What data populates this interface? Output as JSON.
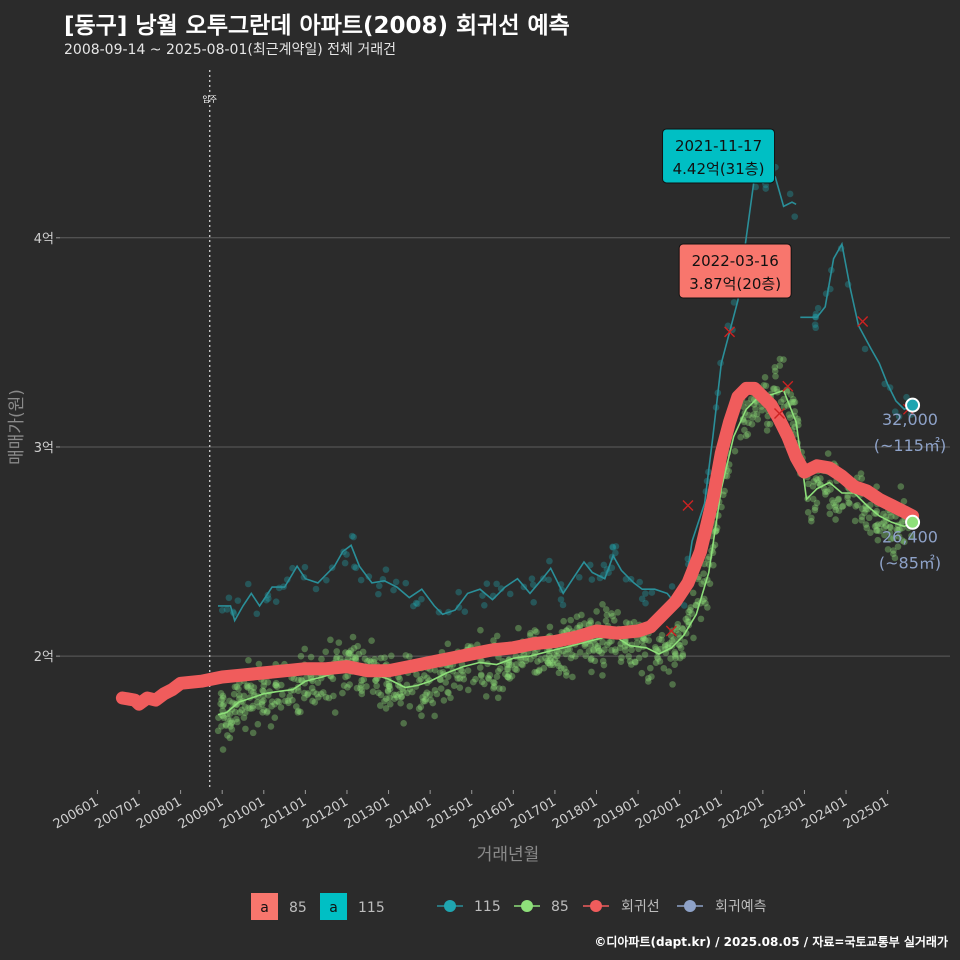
{
  "header": {
    "title": "[동구] 낭월 오투그란데 아파트(2008) 회귀선 예측",
    "subtitle": "2008-09-14 ~ 2025-08-01(최근계약일) 전체 거래건"
  },
  "footer": "©디아파트(dapt.kr) / 2025.08.05 / 자료=국토교통부 실거래가",
  "chart_data": {
    "type": "line",
    "xlabel": "거래년월",
    "ylabel": "매매가(원)",
    "x_ticks": [
      "200601",
      "200701",
      "200801",
      "200901",
      "201001",
      "201101",
      "201201",
      "201301",
      "201401",
      "201501",
      "201601",
      "201701",
      "201801",
      "201901",
      "202001",
      "202101",
      "202201",
      "202301",
      "202401",
      "202501"
    ],
    "x_range": [
      2005.1,
      2026.5
    ],
    "y_ticks": [
      {
        "v": 2.0,
        "label": "2억"
      },
      {
        "v": 3.0,
        "label": "3억"
      },
      {
        "v": 4.0,
        "label": "4억"
      }
    ],
    "y_range": [
      1.36,
      4.85
    ],
    "move_in": {
      "x": 2008.7,
      "label": "입주"
    },
    "colors": {
      "regression": "#f05c5c",
      "s85": "#8ee07a",
      "s115": "#1fa5b0",
      "s115_line": "#2a8f99",
      "pred": "#8ea2c8",
      "box85": "#f8766d",
      "box115": "#00bfc4",
      "cross": "#cc2222"
    },
    "series": [
      {
        "name": "115",
        "points": [
          [
            2008.9,
            2.24
          ],
          [
            2009.2,
            2.24
          ],
          [
            2009.3,
            2.17
          ],
          [
            2009.5,
            2.24
          ],
          [
            2009.7,
            2.3
          ],
          [
            2009.9,
            2.24
          ],
          [
            2010.2,
            2.33
          ],
          [
            2010.5,
            2.33
          ],
          [
            2010.8,
            2.43
          ],
          [
            2011.0,
            2.37
          ],
          [
            2011.3,
            2.35
          ],
          [
            2011.7,
            2.43
          ],
          [
            2011.9,
            2.5
          ],
          [
            2012.1,
            2.53
          ],
          [
            2012.3,
            2.43
          ],
          [
            2012.6,
            2.35
          ],
          [
            2012.9,
            2.36
          ],
          [
            2013.2,
            2.33
          ],
          [
            2013.5,
            2.28
          ],
          [
            2013.8,
            2.32
          ],
          [
            2014.1,
            2.24
          ],
          [
            2014.3,
            2.2
          ],
          [
            2014.6,
            2.22
          ],
          [
            2014.9,
            2.3
          ],
          [
            2015.2,
            2.32
          ],
          [
            2015.5,
            2.27
          ],
          [
            2015.8,
            2.33
          ],
          [
            2016.1,
            2.37
          ],
          [
            2016.4,
            2.3
          ],
          [
            2016.7,
            2.37
          ],
          [
            2016.9,
            2.42
          ],
          [
            2017.2,
            2.3
          ],
          [
            2017.4,
            2.36
          ],
          [
            2017.7,
            2.45
          ],
          [
            2017.9,
            2.4
          ],
          [
            2018.2,
            2.37
          ],
          [
            2018.4,
            2.48
          ],
          [
            2018.6,
            2.41
          ],
          [
            2018.9,
            2.35
          ],
          [
            2019.1,
            2.32
          ],
          [
            2019.4,
            2.32
          ],
          [
            2019.7,
            2.3
          ],
          [
            2019.9,
            2.25
          ],
          [
            2020.1,
            2.28
          ],
          [
            2020.3,
            2.55
          ],
          [
            2020.6,
            2.73
          ],
          [
            2020.8,
            3.05
          ],
          [
            2021.0,
            3.4
          ],
          [
            2021.2,
            3.55
          ],
          [
            2021.4,
            3.7
          ],
          [
            2021.6,
            4.0
          ],
          [
            2021.8,
            4.29
          ],
          [
            2022.0,
            4.26
          ],
          [
            2022.3,
            4.29
          ],
          [
            2022.5,
            4.15
          ],
          [
            2022.7,
            4.17
          ],
          [
            2022.8,
            4.16
          ]
        ],
        "gap_after": 2022.8
      },
      {
        "name": "115b",
        "points": [
          [
            2022.9,
            3.62
          ],
          [
            2023.3,
            3.62
          ],
          [
            2023.5,
            3.67
          ],
          [
            2023.7,
            3.9
          ],
          [
            2023.9,
            3.97
          ],
          [
            2024.1,
            3.76
          ],
          [
            2024.3,
            3.58
          ],
          [
            2024.6,
            3.47
          ],
          [
            2024.8,
            3.4
          ],
          [
            2025.0,
            3.3
          ],
          [
            2025.2,
            3.22
          ],
          [
            2025.4,
            3.18
          ],
          [
            2025.6,
            3.2
          ]
        ]
      },
      {
        "name": "85",
        "points": [
          [
            2008.9,
            1.72
          ],
          [
            2009.1,
            1.73
          ],
          [
            2009.4,
            1.78
          ],
          [
            2009.7,
            1.8
          ],
          [
            2010.0,
            1.82
          ],
          [
            2010.3,
            1.83
          ],
          [
            2010.7,
            1.84
          ],
          [
            2011.0,
            1.88
          ],
          [
            2011.4,
            1.9
          ],
          [
            2011.7,
            1.92
          ],
          [
            2012.0,
            1.93
          ],
          [
            2012.4,
            1.94
          ],
          [
            2012.7,
            1.91
          ],
          [
            2013.0,
            1.89
          ],
          [
            2013.4,
            1.85
          ],
          [
            2013.7,
            1.86
          ],
          [
            2014.0,
            1.88
          ],
          [
            2014.4,
            1.92
          ],
          [
            2014.8,
            1.95
          ],
          [
            2015.2,
            1.97
          ],
          [
            2015.6,
            1.96
          ],
          [
            2016.0,
            1.99
          ],
          [
            2016.4,
            2.0
          ],
          [
            2016.8,
            2.02
          ],
          [
            2017.2,
            2.04
          ],
          [
            2017.6,
            2.06
          ],
          [
            2018.0,
            2.08
          ],
          [
            2018.4,
            2.1
          ],
          [
            2018.8,
            2.05
          ],
          [
            2019.2,
            2.04
          ],
          [
            2019.5,
            2.01
          ],
          [
            2019.8,
            2.04
          ],
          [
            2020.1,
            2.1
          ],
          [
            2020.4,
            2.2
          ],
          [
            2020.7,
            2.4
          ],
          [
            2021.0,
            2.8
          ],
          [
            2021.3,
            3.05
          ],
          [
            2021.6,
            3.18
          ],
          [
            2021.9,
            3.24
          ],
          [
            2022.2,
            3.25
          ],
          [
            2022.5,
            3.27
          ],
          [
            2022.8,
            3.12
          ],
          [
            2022.95,
            2.9
          ],
          [
            2023.05,
            2.75
          ],
          [
            2023.3,
            2.8
          ],
          [
            2023.6,
            2.83
          ],
          [
            2023.9,
            2.78
          ],
          [
            2024.2,
            2.78
          ],
          [
            2024.5,
            2.72
          ],
          [
            2024.8,
            2.67
          ],
          [
            2025.1,
            2.64
          ],
          [
            2025.4,
            2.62
          ],
          [
            2025.6,
            2.64
          ]
        ]
      },
      {
        "name": "회귀선",
        "points": [
          [
            2006.6,
            1.8
          ],
          [
            2006.9,
            1.79
          ],
          [
            2007.0,
            1.77
          ],
          [
            2007.2,
            1.8
          ],
          [
            2007.4,
            1.79
          ],
          [
            2007.6,
            1.82
          ],
          [
            2007.8,
            1.84
          ],
          [
            2008.0,
            1.87
          ],
          [
            2008.5,
            1.88
          ],
          [
            2009.0,
            1.9
          ],
          [
            2009.5,
            1.91
          ],
          [
            2010.0,
            1.92
          ],
          [
            2010.5,
            1.93
          ],
          [
            2011.0,
            1.94
          ],
          [
            2011.5,
            1.94
          ],
          [
            2012.0,
            1.95
          ],
          [
            2012.5,
            1.93
          ],
          [
            2013.0,
            1.93
          ],
          [
            2013.5,
            1.95
          ],
          [
            2014.0,
            1.97
          ],
          [
            2014.5,
            1.99
          ],
          [
            2015.0,
            2.01
          ],
          [
            2015.5,
            2.03
          ],
          [
            2016.0,
            2.04
          ],
          [
            2016.5,
            2.06
          ],
          [
            2017.0,
            2.07
          ],
          [
            2017.5,
            2.09
          ],
          [
            2018.0,
            2.12
          ],
          [
            2018.5,
            2.11
          ],
          [
            2019.0,
            2.12
          ],
          [
            2019.3,
            2.14
          ],
          [
            2019.6,
            2.2
          ],
          [
            2019.9,
            2.26
          ],
          [
            2020.2,
            2.35
          ],
          [
            2020.5,
            2.5
          ],
          [
            2020.8,
            2.75
          ],
          [
            2021.0,
            2.97
          ],
          [
            2021.2,
            3.12
          ],
          [
            2021.4,
            3.24
          ],
          [
            2021.6,
            3.28
          ],
          [
            2021.8,
            3.28
          ],
          [
            2022.0,
            3.24
          ],
          [
            2022.2,
            3.2
          ],
          [
            2022.4,
            3.13
          ],
          [
            2022.6,
            3.05
          ],
          [
            2022.8,
            2.95
          ],
          [
            2023.0,
            2.88
          ],
          [
            2023.3,
            2.91
          ],
          [
            2023.6,
            2.9
          ],
          [
            2023.9,
            2.86
          ],
          [
            2024.2,
            2.81
          ],
          [
            2024.5,
            2.79
          ],
          [
            2024.8,
            2.75
          ],
          [
            2025.1,
            2.72
          ],
          [
            2025.4,
            2.69
          ],
          [
            2025.6,
            2.67
          ]
        ]
      }
    ],
    "pred_points": [
      {
        "series": "115",
        "x": 2025.6,
        "y": 3.2,
        "value": "32,000",
        "area": "(~115㎡)"
      },
      {
        "series": "85",
        "x": 2025.6,
        "y": 2.64,
        "value": "26,400",
        "area": "(~85㎡)"
      }
    ],
    "crosses": [
      [
        2019.8,
        2.12
      ],
      [
        2020.2,
        2.72
      ],
      [
        2021.2,
        3.55
      ],
      [
        2022.4,
        3.16
      ],
      [
        2022.6,
        3.29
      ],
      [
        2024.4,
        3.6
      ],
      [
        2025.5,
        3.18
      ]
    ],
    "annotations": [
      {
        "series": "115",
        "x": 2021.8,
        "y": 4.42,
        "line1": "2021-11-17",
        "line2": "4.42억(31층)"
      },
      {
        "series": "85",
        "x": 2022.2,
        "y": 3.87,
        "line1": "2022-03-16",
        "line2": "3.87억(20층)"
      }
    ],
    "legend": {
      "box_a": "a",
      "box85": "85",
      "box115": "115",
      "l115": "115",
      "l85": "85",
      "lreg": "회귀선",
      "lpred": "회귀예측"
    }
  }
}
